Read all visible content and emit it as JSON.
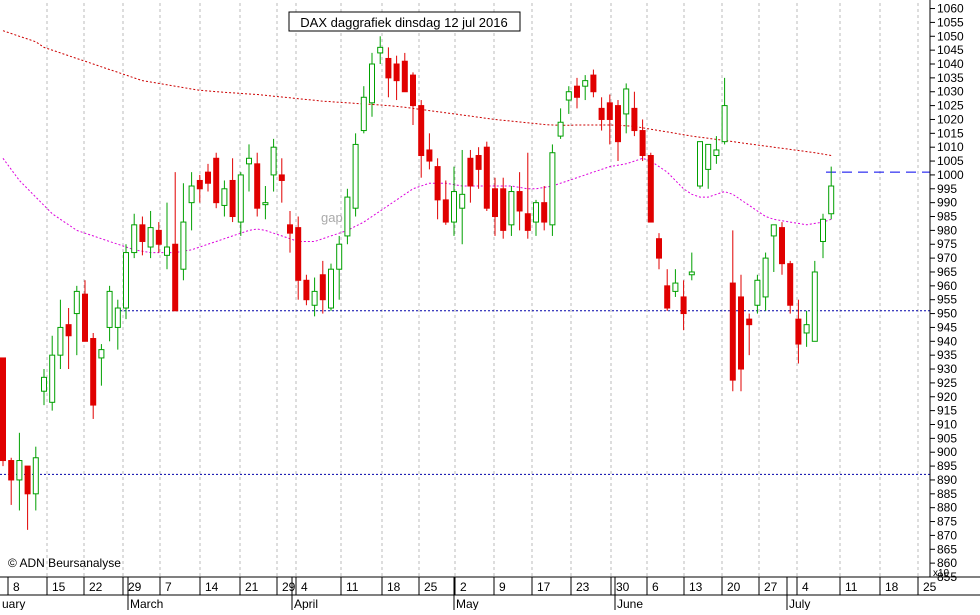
{
  "chart_data": {
    "type": "candlestick",
    "title": "DAX daggrafiek dinsdag 12 jul 2016",
    "copyright": "© ADN Beursanalyse",
    "annotation": "gap",
    "y_scale_note": "x10",
    "ylim": [
      855,
      1062
    ],
    "y_ticks": [
      855,
      860,
      865,
      870,
      875,
      880,
      885,
      890,
      895,
      900,
      905,
      910,
      915,
      920,
      925,
      930,
      935,
      940,
      945,
      950,
      955,
      960,
      965,
      970,
      975,
      980,
      985,
      990,
      995,
      1000,
      1005,
      1010,
      1015,
      1020,
      1025,
      1030,
      1035,
      1040,
      1045,
      1050,
      1055,
      1060
    ],
    "x_tick_labels": [
      "8",
      "15",
      "22",
      "29",
      "7",
      "14",
      "21",
      "29",
      "4",
      "11",
      "18",
      "25",
      "2",
      "9",
      "17",
      "23",
      "30",
      "6",
      "13",
      "20",
      "27",
      "4",
      "11",
      "18",
      "25"
    ],
    "month_labels": [
      "uary",
      "March",
      "April",
      "May",
      "June",
      "July"
    ],
    "grid": true,
    "horizontal_lines": [
      {
        "name": "support-low",
        "value": 892
      },
      {
        "name": "support-mid",
        "value": 951
      },
      {
        "name": "resistance",
        "value": 1001
      }
    ],
    "colors": {
      "up": "#00a000",
      "down": "#e00000",
      "ma_long": "#cc0000",
      "ma_short": "#dd00dd",
      "support": "#0000aa",
      "resistance": "#0000ee",
      "grid": "#bbbbbb"
    },
    "candles": [
      {
        "o": 934,
        "h": 934,
        "l": 895,
        "c": 897
      },
      {
        "o": 897,
        "h": 898,
        "l": 881,
        "c": 890
      },
      {
        "o": 890,
        "h": 907,
        "l": 879,
        "c": 897
      },
      {
        "o": 895,
        "h": 895,
        "l": 872,
        "c": 885
      },
      {
        "o": 885,
        "h": 902,
        "l": 879,
        "c": 898
      },
      {
        "o": 922,
        "h": 930,
        "l": 917,
        "c": 927
      },
      {
        "o": 918,
        "h": 942,
        "l": 915,
        "c": 935
      },
      {
        "o": 935,
        "h": 955,
        "l": 930,
        "c": 945
      },
      {
        "o": 946,
        "h": 952,
        "l": 930,
        "c": 942
      },
      {
        "o": 950,
        "h": 960,
        "l": 935,
        "c": 958
      },
      {
        "o": 957,
        "h": 962,
        "l": 942,
        "c": 940
      },
      {
        "o": 941,
        "h": 943,
        "l": 912,
        "c": 917
      },
      {
        "o": 934,
        "h": 939,
        "l": 924,
        "c": 937
      },
      {
        "o": 945,
        "h": 960,
        "l": 940,
        "c": 958
      },
      {
        "o": 945,
        "h": 955,
        "l": 937,
        "c": 952
      },
      {
        "o": 952,
        "h": 975,
        "l": 948,
        "c": 972
      },
      {
        "o": 972,
        "h": 986,
        "l": 970,
        "c": 982
      },
      {
        "o": 982,
        "h": 985,
        "l": 971,
        "c": 976
      },
      {
        "o": 974,
        "h": 987,
        "l": 970,
        "c": 981
      },
      {
        "o": 980,
        "h": 983,
        "l": 972,
        "c": 975
      },
      {
        "o": 971,
        "h": 990,
        "l": 966,
        "c": 974
      },
      {
        "o": 975,
        "h": 1001,
        "l": 951,
        "c": 951
      },
      {
        "o": 966,
        "h": 997,
        "l": 962,
        "c": 983
      },
      {
        "o": 990,
        "h": 1001,
        "l": 980,
        "c": 996
      },
      {
        "o": 998,
        "h": 1000,
        "l": 990,
        "c": 995
      },
      {
        "o": 1001,
        "h": 1004,
        "l": 994,
        "c": 997
      },
      {
        "o": 1006,
        "h": 1008,
        "l": 988,
        "c": 990
      },
      {
        "o": 989,
        "h": 998,
        "l": 985,
        "c": 995
      },
      {
        "o": 998,
        "h": 1006,
        "l": 983,
        "c": 985
      },
      {
        "o": 983,
        "h": 1001,
        "l": 978,
        "c": 1000
      },
      {
        "o": 1004,
        "h": 1011,
        "l": 994,
        "c": 1006
      },
      {
        "o": 1004,
        "h": 1008,
        "l": 985,
        "c": 988
      },
      {
        "o": 990,
        "h": 996,
        "l": 984,
        "c": 990
      },
      {
        "o": 1000,
        "h": 1013,
        "l": 994,
        "c": 1010
      },
      {
        "o": 1000,
        "h": 1006,
        "l": 990,
        "c": 998
      },
      {
        "o": 982,
        "h": 987,
        "l": 972,
        "c": 979
      },
      {
        "o": 981,
        "h": 985,
        "l": 955,
        "c": 962
      },
      {
        "o": 962,
        "h": 964,
        "l": 953,
        "c": 955
      },
      {
        "o": 953,
        "h": 963,
        "l": 949,
        "c": 958
      },
      {
        "o": 964,
        "h": 969,
        "l": 950,
        "c": 955
      },
      {
        "o": 952,
        "h": 968,
        "l": 951,
        "c": 966
      },
      {
        "o": 966,
        "h": 978,
        "l": 955,
        "c": 975
      },
      {
        "o": 978,
        "h": 995,
        "l": 975,
        "c": 992
      },
      {
        "o": 988,
        "h": 1015,
        "l": 985,
        "c": 1011
      },
      {
        "o": 1016,
        "h": 1032,
        "l": 1015,
        "c": 1028
      },
      {
        "o": 1026,
        "h": 1044,
        "l": 1021,
        "c": 1040
      },
      {
        "o": 1044,
        "h": 1050,
        "l": 1040,
        "c": 1046
      },
      {
        "o": 1042,
        "h": 1046,
        "l": 1028,
        "c": 1035
      },
      {
        "o": 1040,
        "h": 1043,
        "l": 1027,
        "c": 1034
      },
      {
        "o": 1041,
        "h": 1044,
        "l": 1030,
        "c": 1030
      },
      {
        "o": 1036,
        "h": 1037,
        "l": 1018,
        "c": 1025
      },
      {
        "o": 1025,
        "h": 1027,
        "l": 999,
        "c": 1007
      },
      {
        "o": 1009,
        "h": 1015,
        "l": 1002,
        "c": 1005
      },
      {
        "o": 1003,
        "h": 1006,
        "l": 984,
        "c": 991
      },
      {
        "o": 991,
        "h": 998,
        "l": 982,
        "c": 983
      },
      {
        "o": 983,
        "h": 1003,
        "l": 978,
        "c": 994
      },
      {
        "o": 988,
        "h": 1009,
        "l": 975,
        "c": 993
      },
      {
        "o": 1006,
        "h": 1009,
        "l": 990,
        "c": 996
      },
      {
        "o": 1007,
        "h": 1010,
        "l": 995,
        "c": 1002
      },
      {
        "o": 1010,
        "h": 1012,
        "l": 987,
        "c": 988
      },
      {
        "o": 995,
        "h": 999,
        "l": 978,
        "c": 985
      },
      {
        "o": 995,
        "h": 999,
        "l": 977,
        "c": 980
      },
      {
        "o": 982,
        "h": 996,
        "l": 978,
        "c": 994
      },
      {
        "o": 994,
        "h": 1001,
        "l": 980,
        "c": 987
      },
      {
        "o": 986,
        "h": 1008,
        "l": 977,
        "c": 980
      },
      {
        "o": 983,
        "h": 991,
        "l": 978,
        "c": 990
      },
      {
        "o": 990,
        "h": 996,
        "l": 980,
        "c": 983
      },
      {
        "o": 982,
        "h": 1011,
        "l": 978,
        "c": 1008
      },
      {
        "o": 1014,
        "h": 1024,
        "l": 1013,
        "c": 1019
      },
      {
        "o": 1027,
        "h": 1032,
        "l": 1022,
        "c": 1030
      },
      {
        "o": 1032,
        "h": 1035,
        "l": 1024,
        "c": 1028
      },
      {
        "o": 1032,
        "h": 1036,
        "l": 1027,
        "c": 1034
      },
      {
        "o": 1036,
        "h": 1038,
        "l": 1028,
        "c": 1030
      },
      {
        "o": 1024,
        "h": 1028,
        "l": 1016,
        "c": 1020
      },
      {
        "o": 1026,
        "h": 1029,
        "l": 1011,
        "c": 1020
      },
      {
        "o": 1025,
        "h": 1027,
        "l": 1005,
        "c": 1012
      },
      {
        "o": 1022,
        "h": 1033,
        "l": 1015,
        "c": 1031
      },
      {
        "o": 1024,
        "h": 1030,
        "l": 1014,
        "c": 1016
      },
      {
        "o": 1016,
        "h": 1020,
        "l": 1005,
        "c": 1007
      },
      {
        "o": 1007,
        "h": 1008,
        "l": 983,
        "c": 983
      },
      {
        "o": 977,
        "h": 979,
        "l": 966,
        "c": 970
      },
      {
        "o": 960,
        "h": 966,
        "l": 951,
        "c": 952
      },
      {
        "o": 958,
        "h": 966,
        "l": 956,
        "c": 961
      },
      {
        "o": 956,
        "h": 962,
        "l": 944,
        "c": 950
      },
      {
        "o": 964,
        "h": 972,
        "l": 962,
        "c": 965
      },
      {
        "o": 996,
        "h": 1012,
        "l": 995,
        "c": 1012
      },
      {
        "o": 1002,
        "h": 1010,
        "l": 995,
        "c": 1011
      },
      {
        "o": 1007,
        "h": 1014,
        "l": 1004,
        "c": 1009
      },
      {
        "o": 1012,
        "h": 1035,
        "l": 1011,
        "c": 1025
      },
      {
        "o": 961,
        "h": 980,
        "l": 922,
        "c": 926
      },
      {
        "o": 956,
        "h": 964,
        "l": 922,
        "c": 930
      },
      {
        "o": 948,
        "h": 950,
        "l": 935,
        "c": 946
      },
      {
        "o": 953,
        "h": 964,
        "l": 950,
        "c": 962
      },
      {
        "o": 956,
        "h": 972,
        "l": 951,
        "c": 970
      },
      {
        "o": 978,
        "h": 982,
        "l": 965,
        "c": 982
      },
      {
        "o": 981,
        "h": 983,
        "l": 964,
        "c": 968
      },
      {
        "o": 968,
        "h": 969,
        "l": 950,
        "c": 953
      },
      {
        "o": 948,
        "h": 955,
        "l": 932,
        "c": 939
      },
      {
        "o": 943,
        "h": 951,
        "l": 938,
        "c": 946
      },
      {
        "o": 940,
        "h": 969,
        "l": 940,
        "c": 965
      },
      {
        "o": 976,
        "h": 986,
        "l": 970,
        "c": 984
      },
      {
        "o": 986,
        "h": 1003,
        "l": 984,
        "c": 996
      }
    ],
    "ma_long": [
      1052,
      1051,
      1050,
      1049,
      1048,
      1046,
      1045,
      1044,
      1043,
      1042,
      1041,
      1040,
      1039,
      1038,
      1037,
      1036,
      1035,
      1034,
      1033.5,
      1033,
      1032.5,
      1032,
      1031.5,
      1031,
      1030.5,
      1030.3,
      1030,
      1029.8,
      1029.6,
      1029.4,
      1029.2,
      1029,
      1028.7,
      1028.4,
      1028.1,
      1027.8,
      1027.5,
      1027.2,
      1026.9,
      1026.6,
      1026.4,
      1026.2,
      1026,
      1025.8,
      1025.6,
      1025.4,
      1025.2,
      1025,
      1024.7,
      1024.4,
      1024,
      1023.6,
      1023.2,
      1022.8,
      1022.4,
      1022,
      1021.6,
      1021.2,
      1020.8,
      1020.4,
      1020,
      1019.7,
      1019.4,
      1019.1,
      1018.8,
      1018.5,
      1018.2,
      1018,
      1017.9,
      1017.9,
      1018,
      1018,
      1018,
      1018,
      1018,
      1017.9,
      1017.7,
      1017.5,
      1017,
      1016.5,
      1016,
      1015.5,
      1015,
      1014.5,
      1014,
      1013.6,
      1013.2,
      1012.8,
      1012.4,
      1012,
      1011.6,
      1011.2,
      1010.8,
      1010.4,
      1010,
      1009.6,
      1009.2,
      1008.8,
      1008.4,
      1008,
      1007.5,
      1007
    ],
    "ma_short": [
      1006,
      1002,
      998,
      995,
      992,
      989,
      986,
      984,
      982,
      980,
      979,
      978,
      977,
      976,
      975,
      974,
      973,
      972.5,
      972,
      972,
      972,
      972,
      972.5,
      973,
      974,
      975,
      976,
      977,
      978,
      979,
      980,
      980.5,
      980,
      979,
      978,
      977,
      976,
      976,
      976,
      977,
      978,
      979,
      980,
      981.5,
      983,
      985,
      987,
      989,
      991,
      993,
      995,
      996,
      997,
      997,
      997,
      996.5,
      996,
      996,
      996,
      996,
      996,
      996,
      996,
      995.5,
      995,
      995,
      995.5,
      996,
      997,
      998,
      999,
      1000,
      1001,
      1002,
      1003,
      1003.5,
      1004,
      1005,
      1006,
      1005,
      1003,
      1001,
      998,
      995,
      993,
      992,
      992,
      993,
      994,
      993,
      991,
      989,
      987,
      985,
      984,
      983.5,
      983,
      982.5,
      982,
      982.5,
      983,
      984
    ]
  }
}
